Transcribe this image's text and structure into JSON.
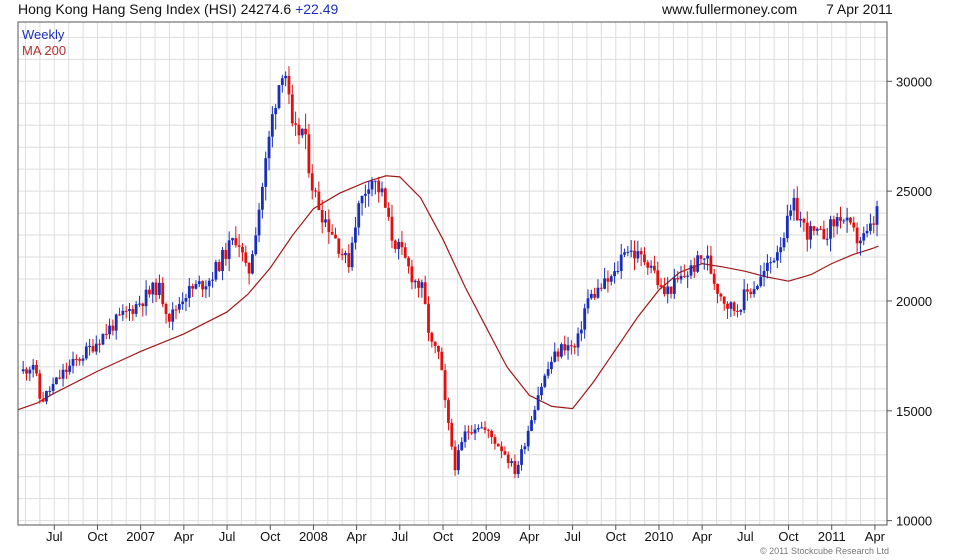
{
  "header": {
    "title": "Hong Kong Hang Seng Index (HSI)",
    "last": "24274.6",
    "change": "+22.49",
    "site": "www.fullermoney.com",
    "date": "7 Apr 2011"
  },
  "legend": {
    "weekly": "Weekly",
    "ma": "MA 200"
  },
  "copyright": "© 2011 Stockcube Research Ltd",
  "colors": {
    "up": "#1a2fb8",
    "down": "#e01010",
    "ma": "#a01818",
    "grid": "#dedede",
    "frame": "#555555"
  },
  "chart_data": {
    "type": "candlestick",
    "frequency": "weekly",
    "ylim": [
      9800,
      32700
    ],
    "yticks": [
      10000,
      15000,
      20000,
      25000,
      30000
    ],
    "ytick_labels": [
      "10000",
      "15000",
      "20000",
      "25000",
      "30000"
    ],
    "xticks": [
      {
        "t": 2006.5,
        "label": "Jul"
      },
      {
        "t": 2006.75,
        "label": "Oct"
      },
      {
        "t": 2007.0,
        "label": "2007"
      },
      {
        "t": 2007.25,
        "label": "Apr"
      },
      {
        "t": 2007.5,
        "label": "Jul"
      },
      {
        "t": 2007.75,
        "label": "Oct"
      },
      {
        "t": 2008.0,
        "label": "2008"
      },
      {
        "t": 2008.25,
        "label": "Apr"
      },
      {
        "t": 2008.5,
        "label": "Jul"
      },
      {
        "t": 2008.75,
        "label": "Oct"
      },
      {
        "t": 2009.0,
        "label": "2009"
      },
      {
        "t": 2009.25,
        "label": "Apr"
      },
      {
        "t": 2009.5,
        "label": "Jul"
      },
      {
        "t": 2009.75,
        "label": "Oct"
      },
      {
        "t": 2010.0,
        "label": "2010"
      },
      {
        "t": 2010.25,
        "label": "Apr"
      },
      {
        "t": 2010.5,
        "label": "Jul"
      },
      {
        "t": 2010.75,
        "label": "Oct"
      },
      {
        "t": 2011.0,
        "label": "2011"
      },
      {
        "t": 2011.25,
        "label": "Apr"
      }
    ],
    "xlim": [
      2006.29,
      2011.32
    ],
    "price_path": [
      [
        2006.32,
        16800
      ],
      [
        2006.38,
        17200
      ],
      [
        2006.42,
        15400
      ],
      [
        2006.47,
        15900
      ],
      [
        2006.55,
        16700
      ],
      [
        2006.7,
        17800
      ],
      [
        2006.85,
        19000
      ],
      [
        2007.0,
        20000
      ],
      [
        2007.1,
        20700
      ],
      [
        2007.17,
        19200
      ],
      [
        2007.25,
        20300
      ],
      [
        2007.4,
        21000
      ],
      [
        2007.5,
        22300
      ],
      [
        2007.56,
        23000
      ],
      [
        2007.62,
        21000
      ],
      [
        2007.7,
        25000
      ],
      [
        2007.77,
        28800
      ],
      [
        2007.83,
        31000
      ],
      [
        2007.88,
        27500
      ],
      [
        2007.94,
        27800
      ],
      [
        2008.0,
        25000
      ],
      [
        2008.05,
        24000
      ],
      [
        2008.12,
        23000
      ],
      [
        2008.2,
        21600
      ],
      [
        2008.25,
        24000
      ],
      [
        2008.33,
        25700
      ],
      [
        2008.4,
        24800
      ],
      [
        2008.45,
        23000
      ],
      [
        2008.52,
        22000
      ],
      [
        2008.58,
        21000
      ],
      [
        2008.63,
        20500
      ],
      [
        2008.68,
        18000
      ],
      [
        2008.73,
        17500
      ],
      [
        2008.77,
        14800
      ],
      [
        2008.82,
        12500
      ],
      [
        2008.88,
        14000
      ],
      [
        2008.95,
        14400
      ],
      [
        2009.02,
        13900
      ],
      [
        2009.1,
        13200
      ],
      [
        2009.17,
        12200
      ],
      [
        2009.22,
        13500
      ],
      [
        2009.3,
        15800
      ],
      [
        2009.38,
        17300
      ],
      [
        2009.45,
        18000
      ],
      [
        2009.52,
        17800
      ],
      [
        2009.58,
        20000
      ],
      [
        2009.65,
        20500
      ],
      [
        2009.75,
        21200
      ],
      [
        2009.8,
        22500
      ],
      [
        2009.88,
        22000
      ],
      [
        2009.95,
        21800
      ],
      [
        2010.02,
        20300
      ],
      [
        2010.1,
        20800
      ],
      [
        2010.18,
        21400
      ],
      [
        2010.27,
        22100
      ],
      [
        2010.33,
        20700
      ],
      [
        2010.4,
        19800
      ],
      [
        2010.45,
        19600
      ],
      [
        2010.5,
        20300
      ],
      [
        2010.58,
        20900
      ],
      [
        2010.65,
        21800
      ],
      [
        2010.72,
        23000
      ],
      [
        2010.78,
        24300
      ],
      [
        2010.85,
        23200
      ],
      [
        2010.93,
        22900
      ],
      [
        2011.0,
        23400
      ],
      [
        2011.05,
        23900
      ],
      [
        2011.1,
        23300
      ],
      [
        2011.15,
        22800
      ],
      [
        2011.2,
        22900
      ],
      [
        2011.24,
        23500
      ],
      [
        2011.27,
        24274
      ]
    ],
    "ma_200": [
      [
        2006.29,
        15050
      ],
      [
        2006.4,
        15350
      ],
      [
        2006.5,
        15800
      ],
      [
        2006.75,
        16800
      ],
      [
        2007.0,
        17700
      ],
      [
        2007.25,
        18500
      ],
      [
        2007.5,
        19500
      ],
      [
        2007.62,
        20300
      ],
      [
        2007.75,
        21500
      ],
      [
        2007.88,
        23000
      ],
      [
        2008.0,
        24200
      ],
      [
        2008.15,
        24900
      ],
      [
        2008.3,
        25400
      ],
      [
        2008.42,
        25700
      ],
      [
        2008.5,
        25650
      ],
      [
        2008.62,
        24700
      ],
      [
        2008.75,
        22800
      ],
      [
        2008.88,
        20600
      ],
      [
        2009.0,
        18800
      ],
      [
        2009.12,
        17000
      ],
      [
        2009.25,
        15700
      ],
      [
        2009.38,
        15200
      ],
      [
        2009.5,
        15100
      ],
      [
        2009.62,
        16300
      ],
      [
        2009.75,
        17800
      ],
      [
        2009.88,
        19300
      ],
      [
        2010.0,
        20500
      ],
      [
        2010.12,
        21300
      ],
      [
        2010.25,
        21700
      ],
      [
        2010.37,
        21550
      ],
      [
        2010.5,
        21350
      ],
      [
        2010.62,
        21100
      ],
      [
        2010.75,
        20900
      ],
      [
        2010.88,
        21200
      ],
      [
        2011.0,
        21700
      ],
      [
        2011.12,
        22100
      ],
      [
        2011.24,
        22400
      ],
      [
        2011.27,
        22500
      ]
    ],
    "series": [
      {
        "name": "Weekly",
        "kind": "candlestick"
      },
      {
        "name": "MA 200",
        "kind": "line"
      }
    ]
  }
}
